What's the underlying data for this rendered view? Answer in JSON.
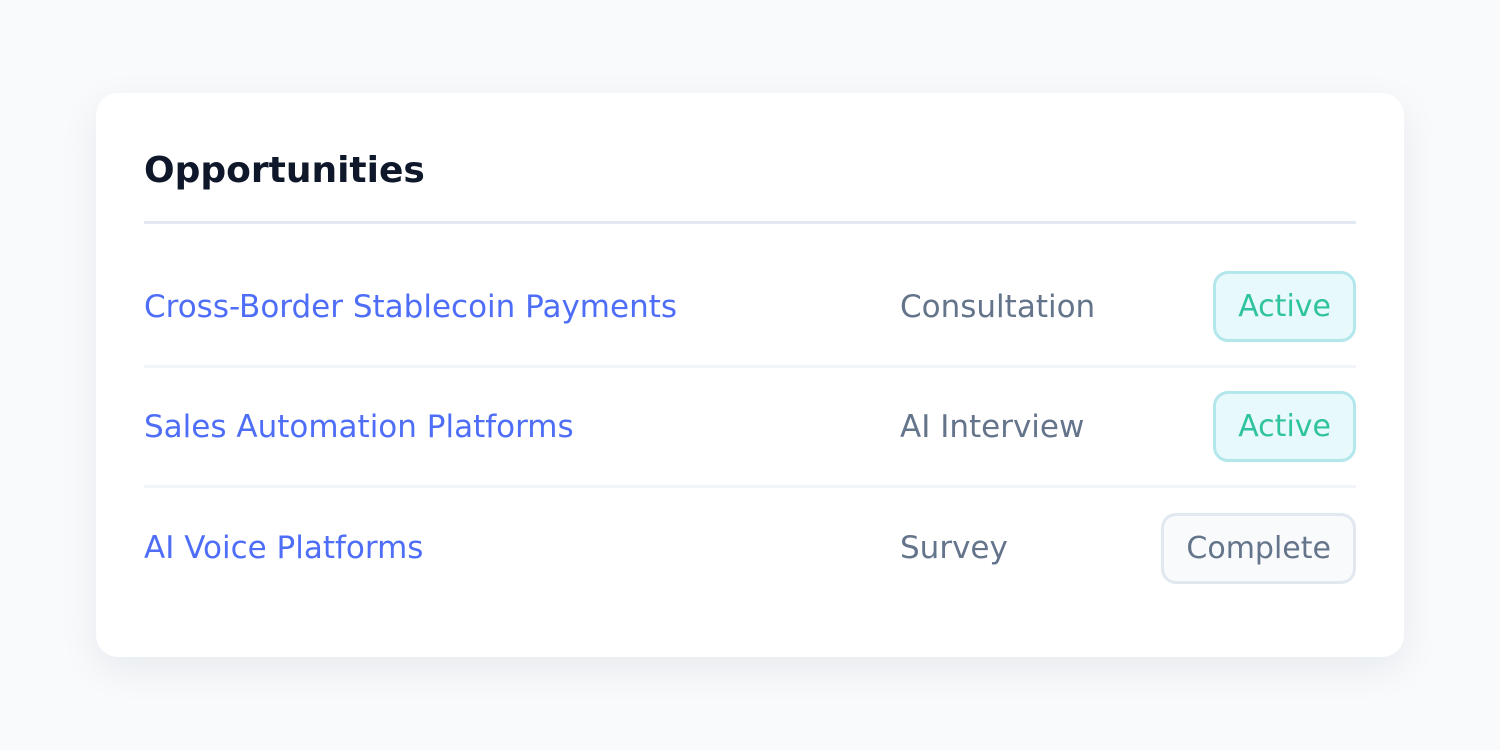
{
  "card": {
    "title": "Opportunities",
    "rows": [
      {
        "name": "Cross-Border Stablecoin Payments",
        "type": "Consultation",
        "status": "Active",
        "status_kind": "active"
      },
      {
        "name": "Sales Automation Platforms",
        "type": "AI Interview",
        "status": "Active",
        "status_kind": "active"
      },
      {
        "name": "AI Voice Platforms",
        "type": "Survey",
        "status": "Complete",
        "status_kind": "complete"
      }
    ]
  },
  "colors": {
    "link": "#4f6ef7",
    "active_text": "#2fc39e",
    "active_bg": "#e8f9fb",
    "complete_text": "#64748b"
  }
}
